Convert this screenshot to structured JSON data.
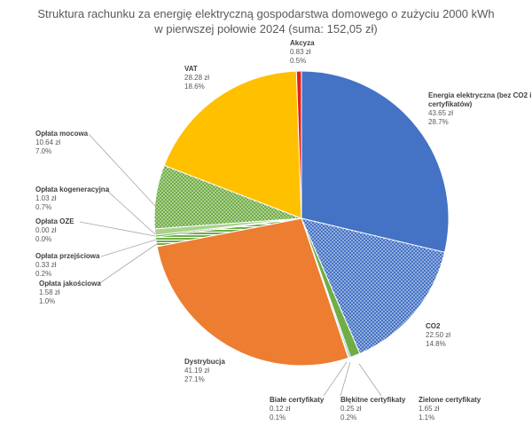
{
  "chart_data": {
    "type": "pie",
    "title_line1": "Struktura rachunku za energię elektryczną gospodarstwa domowego o zużyciu 2000 kWh",
    "title_line2": "w pierwszej połowie 2024 (suma: 152,05 zł)",
    "slices": [
      {
        "label": "Energia elektryczna (bez CO2 i certyfikatów)",
        "value_text": "43.65 zł",
        "pct_text": "28.7%",
        "value": 43.65,
        "color": "#4472C4",
        "pattern": "solid"
      },
      {
        "label": "CO2",
        "value_text": "22.50 zł",
        "pct_text": "14.8%",
        "value": 22.5,
        "color": "#4472C4",
        "pattern": "dots"
      },
      {
        "label": "Zielone certyfikaty",
        "value_text": "1.65 zł",
        "pct_text": "1.1%",
        "value": 1.65,
        "color": "#70AD47",
        "pattern": "solid"
      },
      {
        "label": "Błękitne certyfikaty",
        "value_text": "0.25 zł",
        "pct_text": "0.2%",
        "value": 0.25,
        "color": "#5B9BD5",
        "pattern": "solid"
      },
      {
        "label": "Białe certyfikaty",
        "value_text": "0.12 zł",
        "pct_text": "0.1%",
        "value": 0.12,
        "color": "#D9D9D9",
        "pattern": "solid"
      },
      {
        "label": "Dystrybucja",
        "value_text": "41.19 zł",
        "pct_text": "27.1%",
        "value": 41.19,
        "color": "#ED7D31",
        "pattern": "solid"
      },
      {
        "label": "Opłata jakościowa",
        "value_text": "1.58 zł",
        "pct_text": "1.0%",
        "value": 1.58,
        "color": "#70AD47",
        "pattern": "stripes"
      },
      {
        "label": "Opłata przejściowa",
        "value_text": "0.33 zł",
        "pct_text": "0.2%",
        "value": 0.33,
        "color": "#70AD47",
        "pattern": "solid"
      },
      {
        "label": "Opłata OZE",
        "value_text": "0.00 zł",
        "pct_text": "0.0%",
        "value": 0.0,
        "color": "#70AD47",
        "pattern": "solid"
      },
      {
        "label": "Opłata kogeneracyjna",
        "value_text": "1.03 zł",
        "pct_text": "0.7%",
        "value": 1.03,
        "color": "#A9D18E",
        "pattern": "solid"
      },
      {
        "label": "Opłata mocowa",
        "value_text": "10.64 zł",
        "pct_text": "7.0%",
        "value": 10.64,
        "color": "#70AD47",
        "pattern": "dots"
      },
      {
        "label": "VAT",
        "value_text": "28.28 zł",
        "pct_text": "18.6%",
        "value": 28.28,
        "color": "#FFC000",
        "pattern": "solid"
      },
      {
        "label": "Akcyza",
        "value_text": "0.83 zł",
        "pct_text": "0.5%",
        "value": 0.83,
        "color": "#E02020",
        "pattern": "solid"
      }
    ]
  }
}
